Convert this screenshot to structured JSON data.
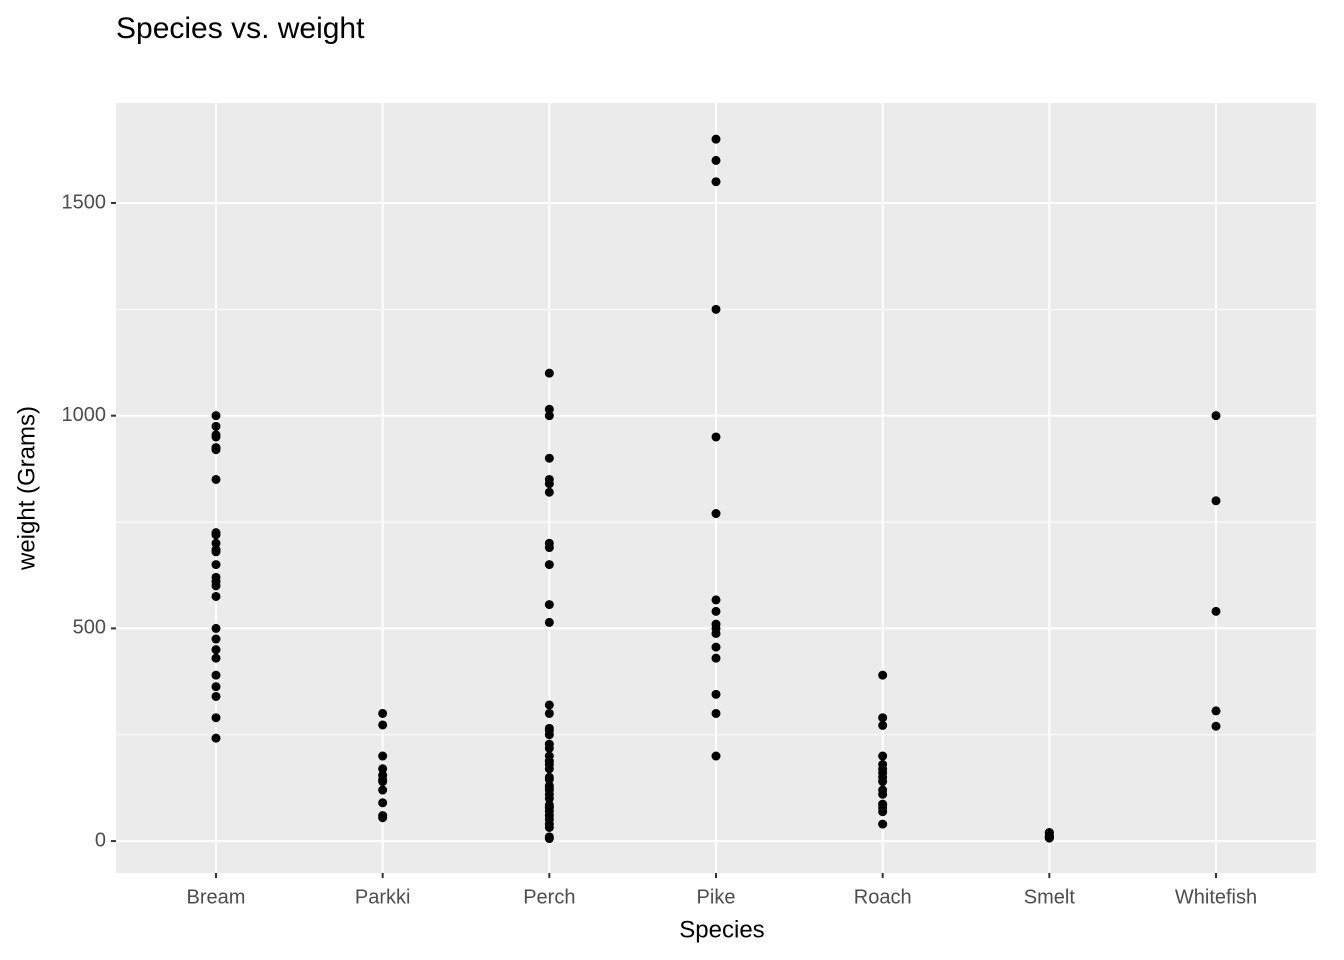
{
  "chart_data": {
    "type": "strip",
    "title": "Species vs. weight",
    "x_label": "Species",
    "y_label": "weight (Grams)",
    "categories": [
      "Bream",
      "Parkki",
      "Perch",
      "Pike",
      "Roach",
      "Smelt",
      "Whitefish"
    ],
    "values": [
      [
        1000,
        975,
        955,
        950,
        925,
        920,
        850,
        725,
        720,
        700,
        685,
        680,
        650,
        620,
        610,
        600,
        575,
        500,
        475,
        450,
        430,
        390,
        363,
        340,
        290,
        242
      ],
      [
        300,
        273,
        200,
        170,
        155,
        145,
        140,
        120,
        90,
        60,
        55
      ],
      [
        1100,
        1015,
        1000,
        900,
        850,
        840,
        820,
        700,
        690,
        650,
        556,
        514,
        320,
        300,
        265,
        260,
        250,
        228,
        218,
        200,
        188,
        180,
        170,
        150,
        145,
        130,
        125,
        120,
        110,
        100,
        85,
        80,
        78,
        70,
        60,
        51,
        40,
        32,
        10,
        6
      ],
      [
        1650,
        1600,
        1550,
        1250,
        950,
        770,
        567,
        540,
        510,
        500,
        488,
        456,
        430,
        345,
        300,
        200
      ],
      [
        390,
        290,
        272,
        200,
        180,
        169,
        160,
        150,
        140,
        120,
        110,
        87,
        85,
        78,
        69,
        40
      ],
      [
        20,
        20,
        13,
        12,
        10,
        10,
        9,
        7,
        8
      ],
      [
        1000,
        800,
        540,
        306,
        270
      ]
    ],
    "color": "#000000",
    "ylim": [
      -75,
      1735
    ],
    "yticks": [
      0,
      500,
      1000,
      1500
    ],
    "minor_yticks": [
      250,
      750,
      1250
    ],
    "grid": true
  }
}
